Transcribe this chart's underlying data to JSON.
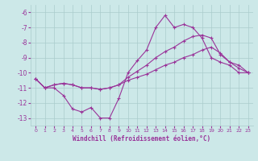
{
  "xlabel": "Windchill (Refroidissement éolien,°C)",
  "xlim": [
    -0.5,
    23.5
  ],
  "ylim": [
    -13.5,
    -5.5
  ],
  "yticks": [
    -13,
    -12,
    -11,
    -10,
    -9,
    -8,
    -7,
    -6
  ],
  "xticks": [
    0,
    1,
    2,
    3,
    4,
    5,
    6,
    7,
    8,
    9,
    10,
    11,
    12,
    13,
    14,
    15,
    16,
    17,
    18,
    19,
    20,
    21,
    22,
    23
  ],
  "bg_color": "#cce8e8",
  "line_color": "#993399",
  "line1_x": [
    0,
    1,
    2,
    3,
    4,
    5,
    6,
    7,
    8,
    9,
    10,
    11,
    12,
    13,
    14,
    15,
    16,
    17,
    18,
    19,
    20,
    21,
    22,
    23
  ],
  "line1_y": [
    -10.4,
    -11.0,
    -11.0,
    -11.5,
    -12.4,
    -12.6,
    -12.3,
    -13.0,
    -13.0,
    -11.7,
    -10.0,
    -9.2,
    -8.5,
    -7.0,
    -6.2,
    -7.0,
    -6.8,
    -7.0,
    -7.7,
    -9.0,
    -9.3,
    -9.5,
    -10.0,
    -10.0
  ],
  "line2_x": [
    0,
    1,
    2,
    3,
    4,
    5,
    6,
    7,
    8,
    9,
    10,
    11,
    12,
    13,
    14,
    15,
    16,
    17,
    18,
    19,
    20,
    21,
    22,
    23
  ],
  "line2_y": [
    -10.4,
    -11.0,
    -10.8,
    -10.7,
    -10.8,
    -11.0,
    -11.0,
    -11.1,
    -11.0,
    -10.8,
    -10.3,
    -9.9,
    -9.5,
    -9.0,
    -8.6,
    -8.3,
    -7.9,
    -7.6,
    -7.5,
    -7.7,
    -8.8,
    -9.3,
    -9.5,
    -10.0
  ],
  "line3_x": [
    0,
    1,
    2,
    3,
    4,
    5,
    6,
    7,
    8,
    9,
    10,
    11,
    12,
    13,
    14,
    15,
    16,
    17,
    18,
    19,
    20,
    21,
    22,
    23
  ],
  "line3_y": [
    -10.4,
    -11.0,
    -10.8,
    -10.7,
    -10.8,
    -11.0,
    -11.0,
    -11.1,
    -11.0,
    -10.8,
    -10.5,
    -10.3,
    -10.1,
    -9.8,
    -9.5,
    -9.3,
    -9.0,
    -8.8,
    -8.5,
    -8.3,
    -8.7,
    -9.3,
    -9.7,
    -10.0
  ]
}
